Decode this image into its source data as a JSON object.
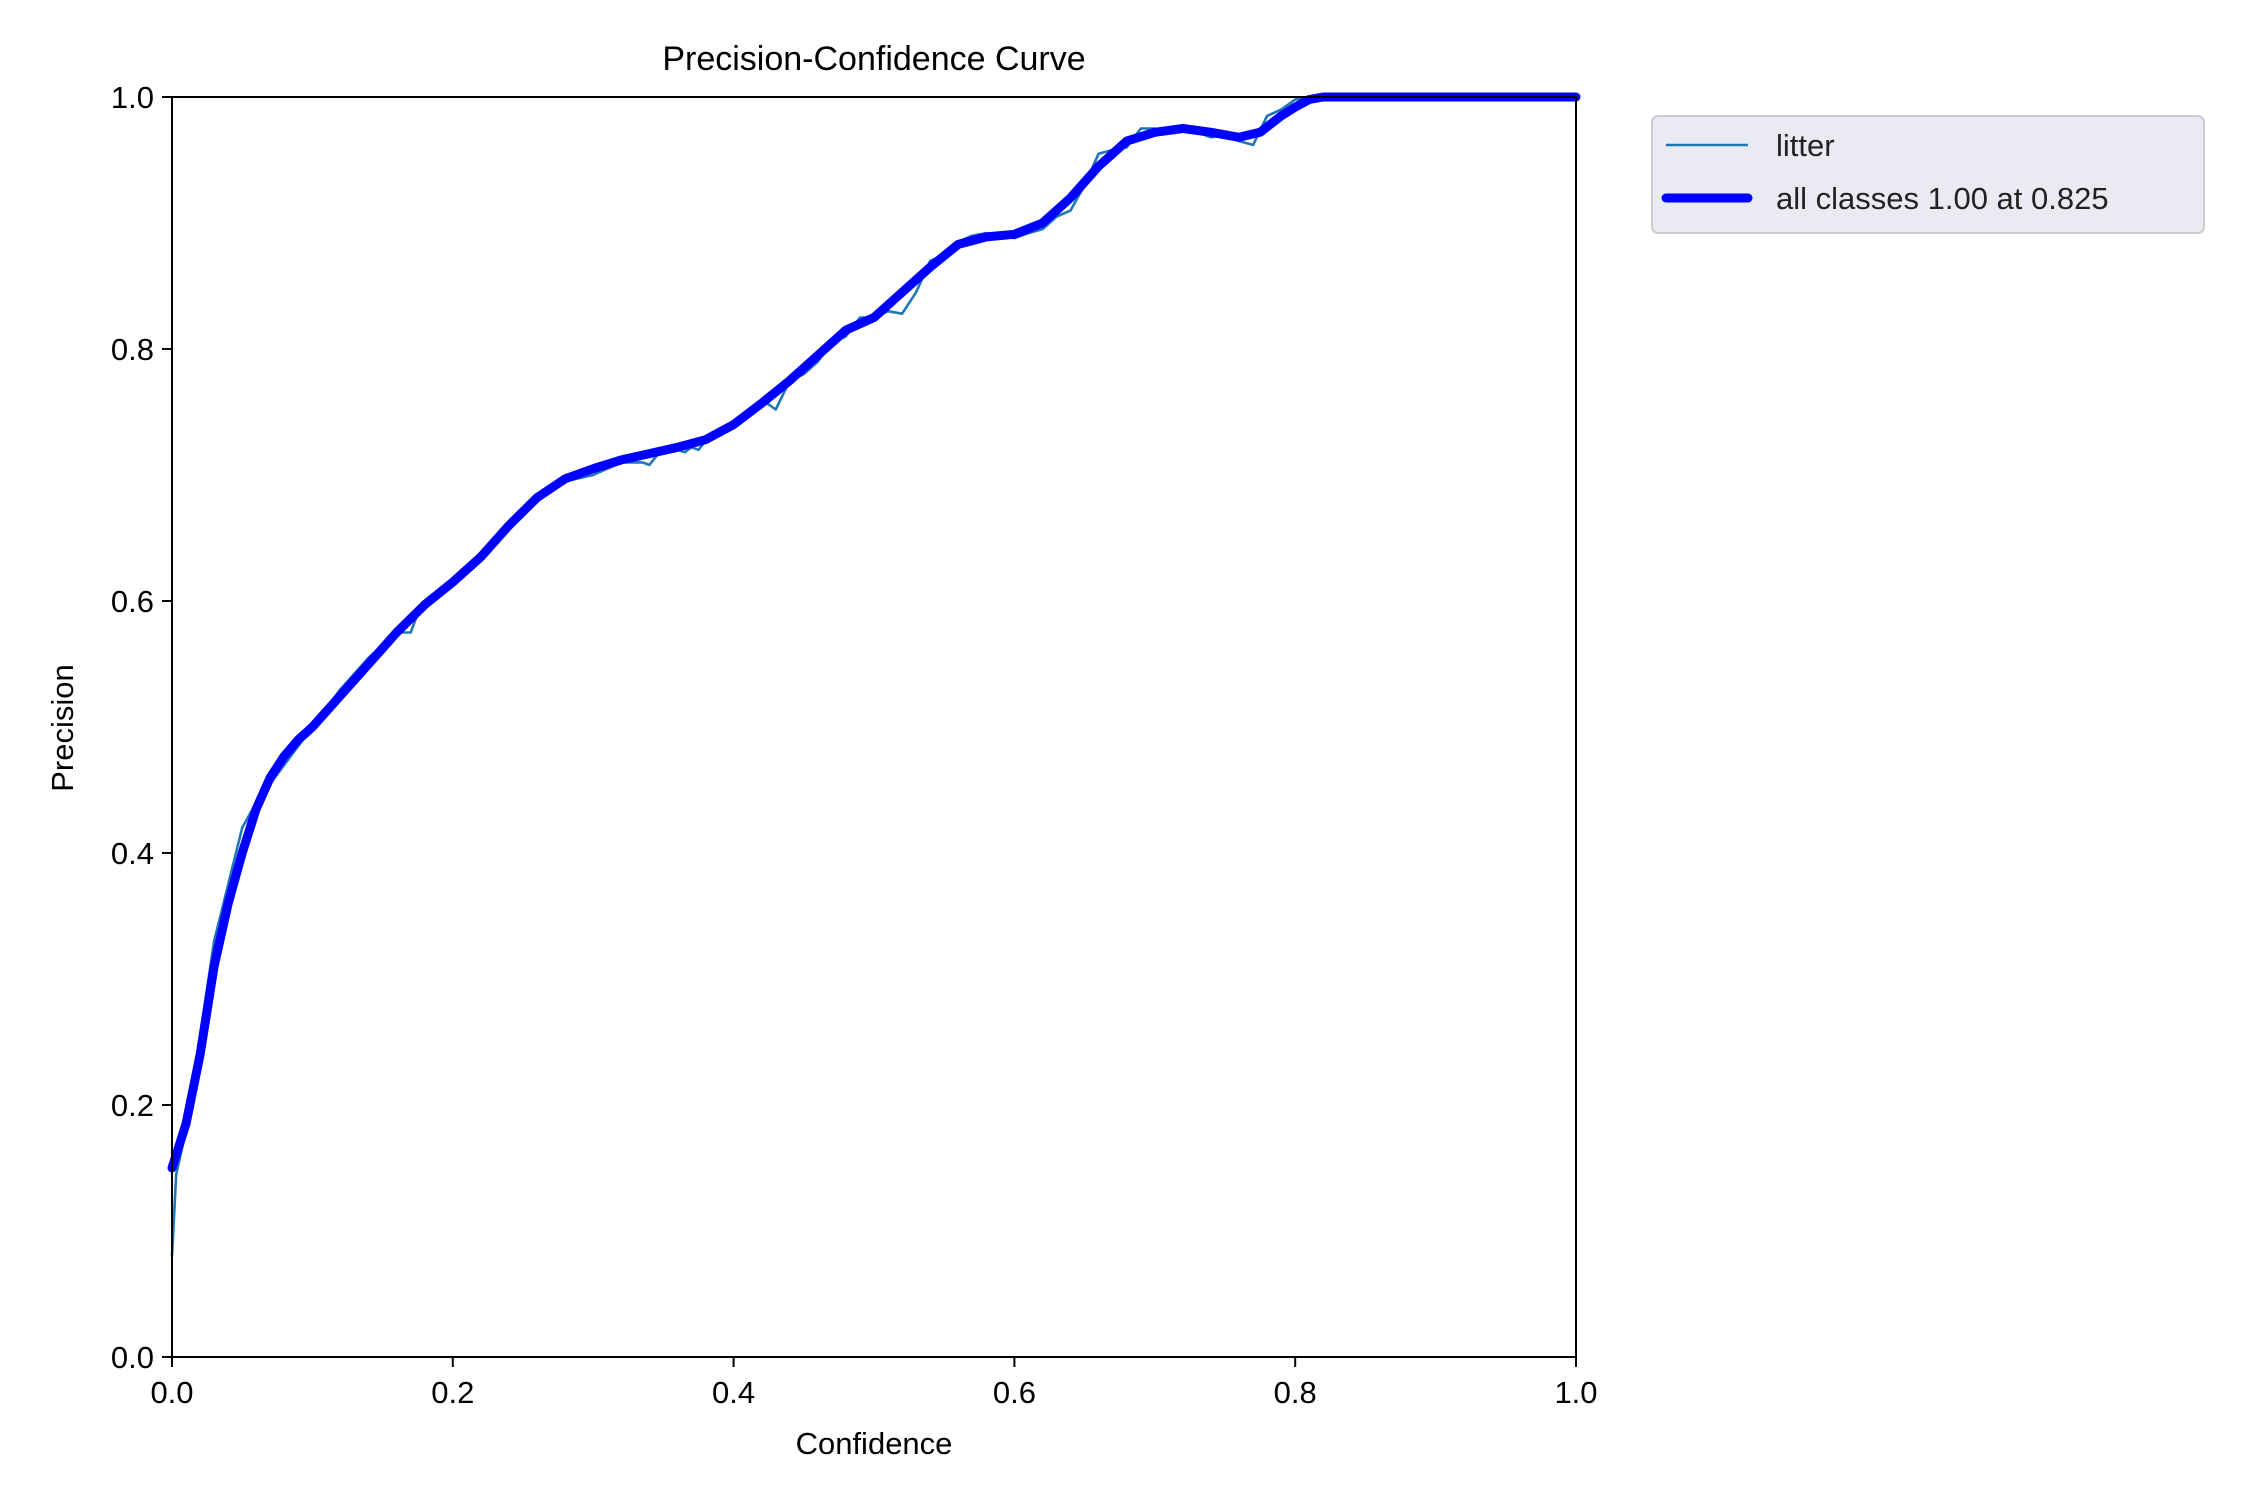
{
  "chart_data": {
    "type": "line",
    "title": "Precision-Confidence Curve",
    "xlabel": "Confidence",
    "ylabel": "Precision",
    "xlim": [
      0.0,
      1.0
    ],
    "ylim": [
      0.0,
      1.0
    ],
    "xticks": [
      "0.0",
      "0.2",
      "0.4",
      "0.6",
      "0.8",
      "1.0"
    ],
    "yticks": [
      "0.0",
      "0.2",
      "0.4",
      "0.6",
      "0.8",
      "1.0"
    ],
    "grid": false,
    "legend_position": "outside upper right",
    "series": [
      {
        "name": "litter",
        "color": "#1f77b4",
        "x": [
          0.0,
          0.003,
          0.01,
          0.02,
          0.03,
          0.04,
          0.05,
          0.06,
          0.07,
          0.08,
          0.1,
          0.12,
          0.14,
          0.15,
          0.16,
          0.17,
          0.175,
          0.18,
          0.19,
          0.2,
          0.22,
          0.24,
          0.26,
          0.28,
          0.3,
          0.32,
          0.335,
          0.34,
          0.345,
          0.35,
          0.36,
          0.365,
          0.37,
          0.375,
          0.38,
          0.4,
          0.42,
          0.43,
          0.44,
          0.45,
          0.46,
          0.47,
          0.48,
          0.49,
          0.5,
          0.51,
          0.52,
          0.53,
          0.54,
          0.55,
          0.56,
          0.57,
          0.58,
          0.59,
          0.6,
          0.61,
          0.62,
          0.63,
          0.64,
          0.65,
          0.66,
          0.67,
          0.68,
          0.69,
          0.7,
          0.71,
          0.72,
          0.73,
          0.74,
          0.75,
          0.76,
          0.77,
          0.78,
          0.79,
          0.8,
          0.81,
          0.82,
          0.85,
          0.9,
          0.95,
          1.0
        ],
        "y": [
          0.08,
          0.145,
          0.18,
          0.255,
          0.33,
          0.375,
          0.42,
          0.44,
          0.455,
          0.47,
          0.5,
          0.53,
          0.555,
          0.565,
          0.575,
          0.575,
          0.59,
          0.6,
          0.605,
          0.615,
          0.635,
          0.66,
          0.68,
          0.695,
          0.7,
          0.71,
          0.71,
          0.708,
          0.715,
          0.72,
          0.72,
          0.718,
          0.722,
          0.72,
          0.727,
          0.74,
          0.76,
          0.752,
          0.775,
          0.78,
          0.79,
          0.805,
          0.81,
          0.825,
          0.825,
          0.83,
          0.828,
          0.845,
          0.87,
          0.875,
          0.885,
          0.89,
          0.892,
          0.89,
          0.888,
          0.892,
          0.895,
          0.905,
          0.91,
          0.93,
          0.955,
          0.958,
          0.96,
          0.975,
          0.975,
          0.972,
          0.975,
          0.972,
          0.968,
          0.97,
          0.965,
          0.962,
          0.985,
          0.99,
          0.998,
          1.0,
          1.0,
          1.0,
          1.0,
          1.0,
          1.0
        ]
      },
      {
        "name": "all classes 1.00 at 0.825",
        "color": "#0000ff",
        "x": [
          0.0,
          0.01,
          0.02,
          0.03,
          0.04,
          0.05,
          0.06,
          0.07,
          0.08,
          0.09,
          0.1,
          0.12,
          0.14,
          0.16,
          0.18,
          0.2,
          0.22,
          0.24,
          0.26,
          0.28,
          0.3,
          0.32,
          0.34,
          0.36,
          0.38,
          0.4,
          0.42,
          0.44,
          0.46,
          0.48,
          0.5,
          0.52,
          0.54,
          0.56,
          0.58,
          0.6,
          0.62,
          0.64,
          0.66,
          0.68,
          0.7,
          0.72,
          0.74,
          0.76,
          0.775,
          0.79,
          0.8,
          0.81,
          0.82,
          0.825,
          0.85,
          0.9,
          0.95,
          1.0
        ],
        "y": [
          0.15,
          0.185,
          0.24,
          0.31,
          0.36,
          0.4,
          0.435,
          0.46,
          0.477,
          0.49,
          0.5,
          0.525,
          0.55,
          0.575,
          0.597,
          0.615,
          0.635,
          0.66,
          0.682,
          0.697,
          0.705,
          0.712,
          0.717,
          0.722,
          0.728,
          0.74,
          0.757,
          0.775,
          0.795,
          0.815,
          0.825,
          0.845,
          0.865,
          0.883,
          0.889,
          0.891,
          0.9,
          0.92,
          0.945,
          0.965,
          0.972,
          0.975,
          0.972,
          0.968,
          0.972,
          0.985,
          0.992,
          0.998,
          1.0,
          1.0,
          1.0,
          1.0,
          1.0,
          1.0
        ]
      }
    ]
  }
}
